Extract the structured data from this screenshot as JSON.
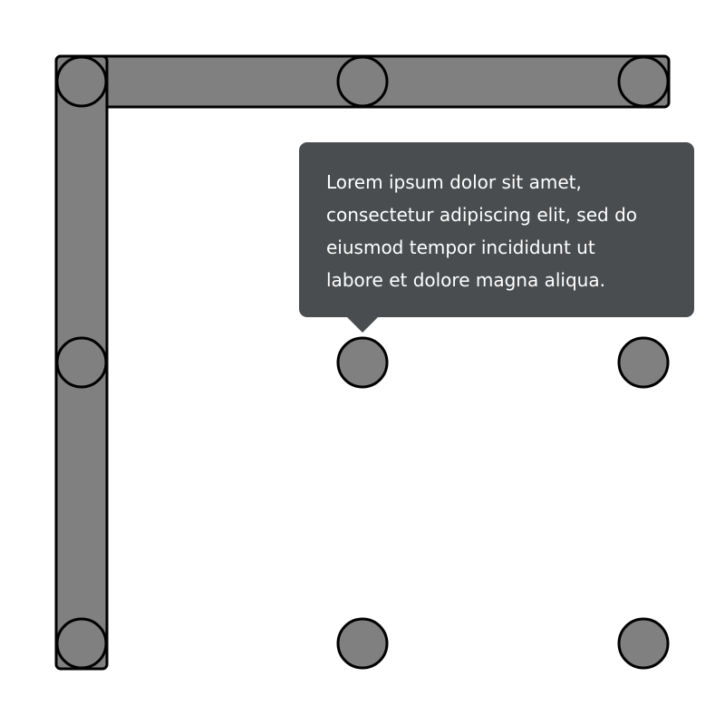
{
  "colors": {
    "background": "#ffffff",
    "node_fill": "#808080",
    "stroke": "#000000",
    "tooltip_background": "#4a4d50",
    "tooltip_text": "#ffffff"
  },
  "grid": {
    "rows": 3,
    "columns": 3,
    "nodes": [
      {
        "row": 0,
        "col": 0
      },
      {
        "row": 0,
        "col": 1
      },
      {
        "row": 0,
        "col": 2
      },
      {
        "row": 1,
        "col": 0
      },
      {
        "row": 1,
        "col": 1
      },
      {
        "row": 1,
        "col": 2
      },
      {
        "row": 2,
        "col": 0
      },
      {
        "row": 2,
        "col": 1
      },
      {
        "row": 2,
        "col": 2
      }
    ],
    "connections": [
      {
        "from": [
          0,
          0
        ],
        "to": [
          0,
          2
        ]
      },
      {
        "from": [
          0,
          0
        ],
        "to": [
          2,
          0
        ]
      }
    ]
  },
  "tooltip": {
    "anchor_node": {
      "row": 1,
      "col": 1
    },
    "lines": [
      "Lorem ipsum dolor sit amet,",
      "consectetur adipiscing elit, sed do",
      "eiusmod tempor incididunt ut",
      "labore et dolore magna aliqua."
    ]
  }
}
